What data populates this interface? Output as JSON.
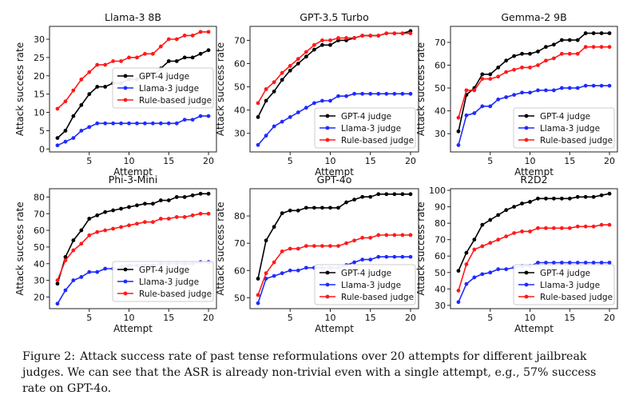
{
  "colors": {
    "gpt4": "#000000",
    "llama": "#1f2bff",
    "rule": "#ff1a1a"
  },
  "figure": {
    "caption_prefix": "Figure 2:",
    "caption_text": "Attack success rate of past tense reformulations over 20 attempts for different jailbreak judges. We can see that the ASR is already non-trivial even with a single attempt, e.g., 57% success rate on GPT-4o."
  },
  "chart_data": [
    {
      "type": "line",
      "title": "Llama-3 8B",
      "xlabel": "Attempt",
      "ylabel": "Attack success rate",
      "xlim": [
        0,
        21
      ],
      "ylim": [
        -0.8,
        33.5
      ],
      "xticks": [
        5,
        10,
        15,
        20
      ],
      "yticks": [
        0,
        5,
        10,
        15,
        20,
        25,
        30
      ],
      "legend": "middle-right",
      "x": [
        1,
        2,
        3,
        4,
        5,
        6,
        7,
        8,
        9,
        10,
        11,
        12,
        13,
        14,
        15,
        16,
        17,
        18,
        19,
        20
      ],
      "series": [
        {
          "name": "GPT-4 judge",
          "color": "#000000",
          "values": [
            3,
            5,
            9,
            12,
            15,
            17,
            17,
            18,
            18,
            19,
            19,
            20,
            20,
            22,
            24,
            24,
            25,
            25,
            26,
            27
          ]
        },
        {
          "name": "Llama-3 judge",
          "color": "#1f2bff",
          "values": [
            1,
            2,
            3,
            5,
            6,
            7,
            7,
            7,
            7,
            7,
            7,
            7,
            7,
            7,
            7,
            7,
            8,
            8,
            9,
            9
          ]
        },
        {
          "name": "Rule-based judge",
          "color": "#ff1a1a",
          "values": [
            11,
            13,
            16,
            19,
            21,
            23,
            23,
            24,
            24,
            25,
            25,
            26,
            26,
            28,
            30,
            30,
            31,
            31,
            32,
            32
          ]
        }
      ]
    },
    {
      "type": "line",
      "title": "GPT-3.5 Turbo",
      "xlabel": "Attempt",
      "ylabel": "Attack success rate",
      "xlim": [
        0,
        21
      ],
      "ylim": [
        22,
        76
      ],
      "xticks": [
        5,
        10,
        15,
        20
      ],
      "yticks": [
        30,
        40,
        50,
        60,
        70
      ],
      "legend": "lower-right",
      "x": [
        1,
        2,
        3,
        4,
        5,
        6,
        7,
        8,
        9,
        10,
        11,
        12,
        13,
        14,
        15,
        16,
        17,
        18,
        19,
        20
      ],
      "series": [
        {
          "name": "GPT-4 judge",
          "color": "#000000",
          "values": [
            37,
            44,
            48,
            53,
            57,
            60,
            63,
            66,
            68,
            68,
            70,
            70,
            71,
            72,
            72,
            72,
            73,
            73,
            73,
            74
          ]
        },
        {
          "name": "Llama-3 judge",
          "color": "#1f2bff",
          "values": [
            25,
            29,
            33,
            35,
            37,
            39,
            41,
            43,
            44,
            44,
            46,
            46,
            47,
            47,
            47,
            47,
            47,
            47,
            47,
            47
          ]
        },
        {
          "name": "Rule-based judge",
          "color": "#ff1a1a",
          "values": [
            43,
            49,
            52,
            56,
            59,
            62,
            65,
            68,
            70,
            70,
            71,
            71,
            71,
            72,
            72,
            72,
            73,
            73,
            73,
            73
          ]
        }
      ]
    },
    {
      "type": "line",
      "title": "Gemma-2 9B",
      "xlabel": "Attempt",
      "ylabel": "Attack success rate",
      "xlim": [
        0,
        21
      ],
      "ylim": [
        22,
        77
      ],
      "xticks": [
        5,
        10,
        15,
        20
      ],
      "yticks": [
        30,
        40,
        50,
        60,
        70
      ],
      "legend": "lower-right",
      "x": [
        1,
        2,
        3,
        4,
        5,
        6,
        7,
        8,
        9,
        10,
        11,
        12,
        13,
        14,
        15,
        16,
        17,
        18,
        19,
        20
      ],
      "series": [
        {
          "name": "GPT-4 judge",
          "color": "#000000",
          "values": [
            31,
            47,
            50,
            56,
            56,
            59,
            62,
            64,
            65,
            65,
            66,
            68,
            69,
            71,
            71,
            71,
            74,
            74,
            74,
            74
          ]
        },
        {
          "name": "Llama-3 judge",
          "color": "#1f2bff",
          "values": [
            25,
            38,
            39,
            42,
            42,
            45,
            46,
            47,
            48,
            48,
            49,
            49,
            49,
            50,
            50,
            50,
            51,
            51,
            51,
            51
          ]
        },
        {
          "name": "Rule-based judge",
          "color": "#ff1a1a",
          "values": [
            37,
            49,
            49,
            54,
            54,
            55,
            57,
            58,
            59,
            59,
            60,
            62,
            63,
            65,
            65,
            65,
            68,
            68,
            68,
            68
          ]
        }
      ]
    },
    {
      "type": "line",
      "title": "Phi-3-Mini",
      "xlabel": "Attempt",
      "ylabel": "Attack success rate",
      "xlim": [
        0,
        21
      ],
      "ylim": [
        13,
        85
      ],
      "xticks": [
        5,
        10,
        15,
        20
      ],
      "yticks": [
        20,
        30,
        40,
        50,
        60,
        70,
        80
      ],
      "legend": "lower-right",
      "x": [
        1,
        2,
        3,
        4,
        5,
        6,
        7,
        8,
        9,
        10,
        11,
        12,
        13,
        14,
        15,
        16,
        17,
        18,
        19,
        20
      ],
      "series": [
        {
          "name": "GPT-4 judge",
          "color": "#000000",
          "values": [
            28,
            44,
            54,
            60,
            67,
            69,
            71,
            72,
            73,
            74,
            75,
            76,
            76,
            78,
            78,
            80,
            80,
            81,
            82,
            82
          ]
        },
        {
          "name": "Llama-3 judge",
          "color": "#1f2bff",
          "values": [
            16,
            24,
            30,
            32,
            35,
            35,
            37,
            37,
            38,
            39,
            39,
            39,
            39,
            40,
            40,
            40,
            40,
            40,
            41,
            41
          ]
        },
        {
          "name": "Rule-based judge",
          "color": "#ff1a1a",
          "values": [
            30,
            42,
            48,
            52,
            57,
            59,
            60,
            61,
            62,
            63,
            64,
            65,
            65,
            67,
            67,
            68,
            68,
            69,
            70,
            70
          ]
        }
      ]
    },
    {
      "type": "line",
      "title": "GPT-4o",
      "xlabel": "Attempt",
      "ylabel": "Attack success rate",
      "xlim": [
        0,
        21
      ],
      "ylim": [
        46,
        90
      ],
      "xticks": [
        5,
        10,
        15,
        20
      ],
      "yticks": [
        50,
        60,
        70,
        80
      ],
      "legend": "lower-right",
      "x": [
        1,
        2,
        3,
        4,
        5,
        6,
        7,
        8,
        9,
        10,
        11,
        12,
        13,
        14,
        15,
        16,
        17,
        18,
        19,
        20
      ],
      "series": [
        {
          "name": "GPT-4 judge",
          "color": "#000000",
          "values": [
            57,
            71,
            76,
            81,
            82,
            82,
            83,
            83,
            83,
            83,
            83,
            85,
            86,
            87,
            87,
            88,
            88,
            88,
            88,
            88
          ]
        },
        {
          "name": "Llama-3 judge",
          "color": "#1f2bff",
          "values": [
            48,
            57,
            58,
            59,
            60,
            60,
            61,
            61,
            61,
            61,
            61,
            62,
            63,
            64,
            64,
            65,
            65,
            65,
            65,
            65
          ]
        },
        {
          "name": "Rule-based judge",
          "color": "#ff1a1a",
          "values": [
            51,
            59,
            63,
            67,
            68,
            68,
            69,
            69,
            69,
            69,
            69,
            70,
            71,
            72,
            72,
            73,
            73,
            73,
            73,
            73
          ]
        }
      ]
    },
    {
      "type": "line",
      "title": "R2D2",
      "xlabel": "Attempt",
      "ylabel": "Attack success rate",
      "xlim": [
        0,
        21
      ],
      "ylim": [
        28,
        101
      ],
      "xticks": [
        5,
        10,
        15,
        20
      ],
      "yticks": [
        30,
        40,
        50,
        60,
        70,
        80,
        90,
        100
      ],
      "legend": "lower-right",
      "x": [
        1,
        2,
        3,
        4,
        5,
        6,
        7,
        8,
        9,
        10,
        11,
        12,
        13,
        14,
        15,
        16,
        17,
        18,
        19,
        20
      ],
      "series": [
        {
          "name": "GPT-4 judge",
          "color": "#000000",
          "values": [
            51,
            62,
            70,
            79,
            82,
            85,
            88,
            90,
            92,
            93,
            95,
            95,
            95,
            95,
            95,
            96,
            96,
            96,
            97,
            98
          ]
        },
        {
          "name": "Llama-3 judge",
          "color": "#1f2bff",
          "values": [
            32,
            43,
            47,
            49,
            50,
            52,
            52,
            53,
            54,
            54,
            56,
            56,
            56,
            56,
            56,
            56,
            56,
            56,
            56,
            56
          ]
        },
        {
          "name": "Rule-based judge",
          "color": "#ff1a1a",
          "values": [
            39,
            55,
            64,
            66,
            68,
            70,
            72,
            74,
            75,
            75,
            77,
            77,
            77,
            77,
            77,
            78,
            78,
            78,
            79,
            79
          ]
        }
      ]
    }
  ]
}
